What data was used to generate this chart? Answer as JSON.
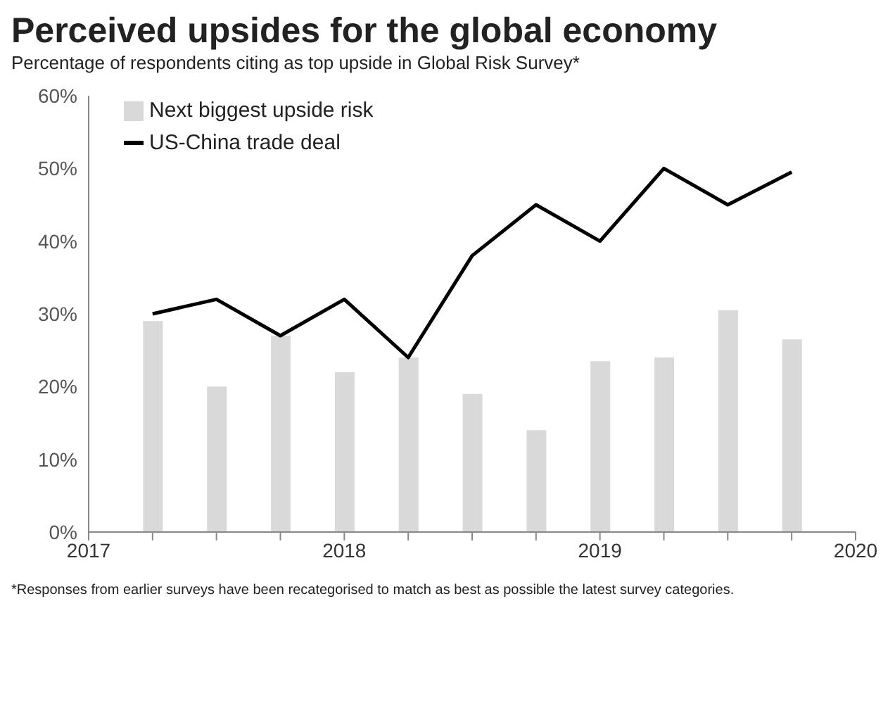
{
  "chart_data": {
    "type": "bar",
    "title": "Perceived upsides for the global economy",
    "subtitle": "Percentage of respondents citing as top upside in Global Risk Survey*",
    "x": [
      2017.25,
      2017.5,
      2017.75,
      2018,
      2018.25,
      2018.5,
      2018.75,
      2019,
      2019.25,
      2019.5,
      2019.75
    ],
    "series": [
      {
        "name": "Next biggest upside risk",
        "color": "#d9d9d9",
        "values": [
          29,
          20,
          27,
          22,
          24,
          19,
          14,
          23.5,
          24,
          30.5,
          26.5
        ]
      },
      {
        "name": "US-China trade deal",
        "type": "line",
        "color": "#000000",
        "values": [
          30,
          32,
          27,
          32,
          24,
          38,
          45,
          40,
          50,
          45,
          49.5
        ]
      }
    ],
    "xlim": [
      2017,
      2020
    ],
    "xticks": [
      {
        "value": 2017,
        "label": "2017"
      },
      {
        "value": 2017.25,
        "label": null
      },
      {
        "value": 2017.5,
        "label": null
      },
      {
        "value": 2017.75,
        "label": null
      },
      {
        "value": 2018,
        "label": "2018"
      },
      {
        "value": 2018.25,
        "label": null
      },
      {
        "value": 2018.5,
        "label": null
      },
      {
        "value": 2018.75,
        "label": null
      },
      {
        "value": 2019,
        "label": "2019"
      },
      {
        "value": 2019.25,
        "label": null
      },
      {
        "value": 2019.5,
        "label": null
      },
      {
        "value": 2019.75,
        "label": null
      },
      {
        "value": 2020,
        "label": "2020"
      }
    ],
    "ylim": [
      0,
      60
    ],
    "yticks": [
      {
        "value": 0,
        "label": "0%"
      },
      {
        "value": 10,
        "label": "10%"
      },
      {
        "value": 20,
        "label": "20%"
      },
      {
        "value": 30,
        "label": "30%"
      },
      {
        "value": 40,
        "label": "40%"
      },
      {
        "value": 50,
        "label": "50%"
      },
      {
        "value": 60,
        "label": "60%"
      }
    ],
    "legend": "top left",
    "grid": false,
    "marker": "none",
    "line_style": "solid",
    "annotations": [
      "*Responses from earlier surveys have been recategorised to match as best as possible the latest survey categories."
    ]
  }
}
